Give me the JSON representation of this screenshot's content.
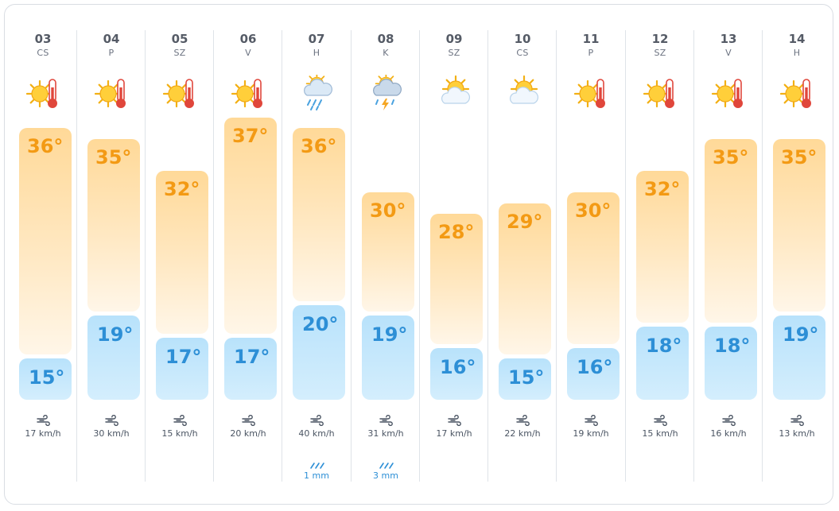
{
  "days": [
    {
      "date": "03",
      "dow": "CS",
      "icon": "sun-thermometer-icon",
      "high": "36°",
      "low": "15°",
      "high_value": 36,
      "low_value": 15,
      "wind": "17 km/h",
      "rain": ""
    },
    {
      "date": "04",
      "dow": "P",
      "icon": "sun-thermometer-icon",
      "high": "35°",
      "low": "19°",
      "high_value": 35,
      "low_value": 19,
      "wind": "30 km/h",
      "rain": ""
    },
    {
      "date": "05",
      "dow": "SZ",
      "icon": "sun-thermometer-icon",
      "high": "32°",
      "low": "17°",
      "high_value": 32,
      "low_value": 17,
      "wind": "15 km/h",
      "rain": ""
    },
    {
      "date": "06",
      "dow": "V",
      "icon": "sun-thermometer-icon",
      "high": "37°",
      "low": "17°",
      "high_value": 37,
      "low_value": 17,
      "wind": "20 km/h",
      "rain": ""
    },
    {
      "date": "07",
      "dow": "H",
      "icon": "sun-cloud-rain-icon",
      "high": "36°",
      "low": "20°",
      "high_value": 36,
      "low_value": 20,
      "wind": "40 km/h",
      "rain": "1 mm"
    },
    {
      "date": "08",
      "dow": "K",
      "icon": "sun-cloud-storm-icon",
      "high": "30°",
      "low": "19°",
      "high_value": 30,
      "low_value": 19,
      "wind": "31 km/h",
      "rain": "3 mm"
    },
    {
      "date": "09",
      "dow": "SZ",
      "icon": "sun-cloud-icon",
      "high": "28°",
      "low": "16°",
      "high_value": 28,
      "low_value": 16,
      "wind": "17 km/h",
      "rain": ""
    },
    {
      "date": "10",
      "dow": "CS",
      "icon": "sun-cloud-icon",
      "high": "29°",
      "low": "15°",
      "high_value": 29,
      "low_value": 15,
      "wind": "22 km/h",
      "rain": ""
    },
    {
      "date": "11",
      "dow": "P",
      "icon": "sun-thermometer-icon",
      "high": "30°",
      "low": "16°",
      "high_value": 30,
      "low_value": 16,
      "wind": "19 km/h",
      "rain": ""
    },
    {
      "date": "12",
      "dow": "SZ",
      "icon": "sun-thermometer-icon",
      "high": "32°",
      "low": "18°",
      "high_value": 32,
      "low_value": 18,
      "wind": "15 km/h",
      "rain": ""
    },
    {
      "date": "13",
      "dow": "V",
      "icon": "sun-thermometer-icon",
      "high": "35°",
      "low": "18°",
      "high_value": 35,
      "low_value": 18,
      "wind": "16 km/h",
      "rain": ""
    },
    {
      "date": "14",
      "dow": "H",
      "icon": "sun-thermometer-icon",
      "high": "35°",
      "low": "19°",
      "high_value": 35,
      "low_value": 19,
      "wind": "13 km/h",
      "rain": ""
    }
  ],
  "colors": {
    "high": "#f39a14",
    "low": "#2d8fd6",
    "rain": "#2d8fd6",
    "text": "#555b66"
  }
}
